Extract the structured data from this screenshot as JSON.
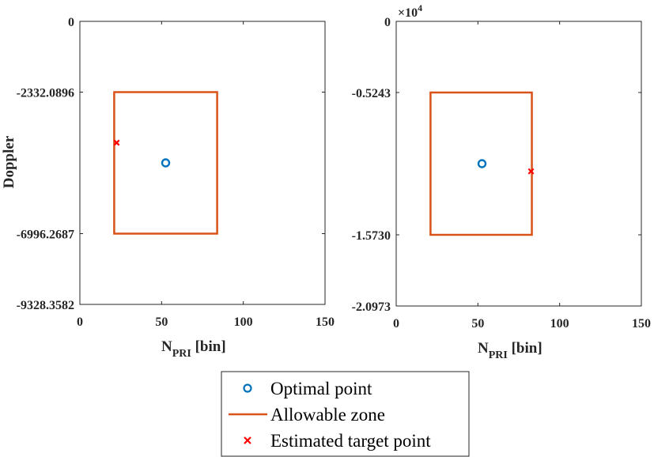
{
  "colors": {
    "optimal": "#0072BD",
    "zone": "#D95319",
    "estimated": "#FF0000",
    "axis": "#262626"
  },
  "chart_data": [
    {
      "type": "scatter",
      "xlabel_main": "N",
      "xlabel_sub": "PRI",
      "xlabel_unit": " [bin]",
      "ylabel": "Doppler",
      "xlim": [
        0,
        150
      ],
      "ylim": [
        -9328.3582,
        0
      ],
      "xticks": [
        "0",
        "50",
        "100",
        "150"
      ],
      "xtick_values": [
        0,
        50,
        100,
        150
      ],
      "yticks": [
        "0",
        "-2332.0896",
        "-6996.2687",
        "-9328.3582"
      ],
      "ytick_values": [
        0,
        -2332.0896,
        -6996.2687,
        -9328.3582
      ],
      "exponent": "",
      "zone": {
        "x": [
          21,
          84
        ],
        "y": [
          -6996.2687,
          -2332.0896
        ]
      },
      "optimal_point": {
        "x": 52.5,
        "y": -4664.1791
      },
      "estimated_point": {
        "x": 22.5,
        "y": -4000
      }
    },
    {
      "type": "scatter",
      "xlabel_main": "N",
      "xlabel_sub": "PRI",
      "xlabel_unit": " [bin]",
      "ylabel": "",
      "xlim": [
        0,
        150
      ],
      "ylim": [
        -2.0973,
        0
      ],
      "xticks": [
        "0",
        "50",
        "100",
        "150"
      ],
      "xtick_values": [
        0,
        50,
        100,
        150
      ],
      "yticks": [
        "0",
        "-0.5243",
        "-1.5730",
        "-2.0973"
      ],
      "ytick_values": [
        0,
        -0.5243,
        -1.573,
        -2.0973
      ],
      "exponent": "×10",
      "exponent_power": "4",
      "zone": {
        "x": [
          21,
          83
        ],
        "y": [
          -1.573,
          -0.5243
        ]
      },
      "optimal_point": {
        "x": 52.5,
        "y": -1.0487
      },
      "estimated_point": {
        "x": 82.5,
        "y": -1.105
      }
    }
  ],
  "legend": {
    "items": [
      {
        "label": "Optimal point",
        "marker": "circle"
      },
      {
        "label": "Allowable zone",
        "marker": "line"
      },
      {
        "label": "Estimated target point",
        "marker": "cross"
      }
    ]
  }
}
